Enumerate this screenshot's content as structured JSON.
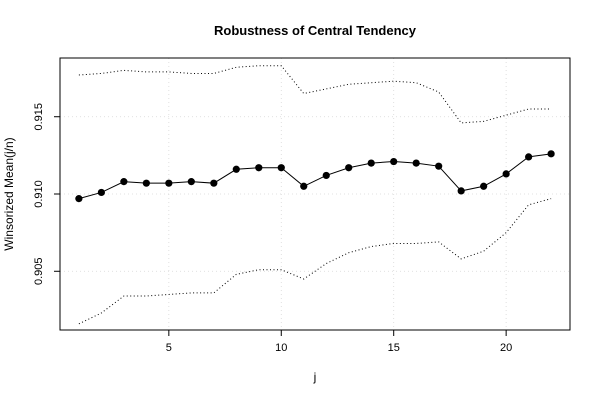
{
  "chart_data": {
    "type": "line",
    "title": "Robustness of Central Tendency",
    "xlabel": "j",
    "ylabel": "Winsorized Mean(j/n)",
    "xlim": [
      0.16,
      22.84
    ],
    "ylim": [
      0.9012,
      0.9188
    ],
    "x_ticks": [
      5,
      10,
      15,
      20
    ],
    "y_ticks": [
      0.905,
      0.91,
      0.915
    ],
    "x_tick_labels": [
      "5",
      "10",
      "15",
      "20"
    ],
    "y_tick_labels": [
      "0.905",
      "0.910",
      "0.915"
    ],
    "grid": true,
    "x": [
      1,
      2,
      3,
      4,
      5,
      6,
      7,
      8,
      9,
      10,
      11,
      12,
      13,
      14,
      15,
      16,
      17,
      18,
      19,
      20,
      21,
      22
    ],
    "series": [
      {
        "style": "points-and-line",
        "values": [
          0.9097,
          0.9101,
          0.9108,
          0.9107,
          0.9107,
          0.9108,
          0.9107,
          0.9116,
          0.9117,
          0.9117,
          0.9105,
          0.9112,
          0.9117,
          0.912,
          0.9121,
          0.912,
          0.9118,
          0.9102,
          0.9105,
          0.9113,
          0.9124,
          0.9126
        ]
      },
      {
        "style": "dotted-upper",
        "values": [
          0.9177,
          0.9178,
          0.918,
          0.9179,
          0.9179,
          0.9178,
          0.9178,
          0.9182,
          0.9183,
          0.9183,
          0.9165,
          0.9168,
          0.9171,
          0.9172,
          0.9173,
          0.9172,
          0.9166,
          0.9146,
          0.9147,
          0.9151,
          0.9155,
          0.9155
        ]
      },
      {
        "style": "dotted-lower",
        "values": [
          0.9016,
          0.9023,
          0.9034,
          0.9034,
          0.9035,
          0.9036,
          0.9036,
          0.9048,
          0.9051,
          0.9051,
          0.9045,
          0.9055,
          0.9062,
          0.9066,
          0.9068,
          0.9068,
          0.9069,
          0.9058,
          0.9063,
          0.9075,
          0.9093,
          0.9097
        ]
      }
    ]
  }
}
